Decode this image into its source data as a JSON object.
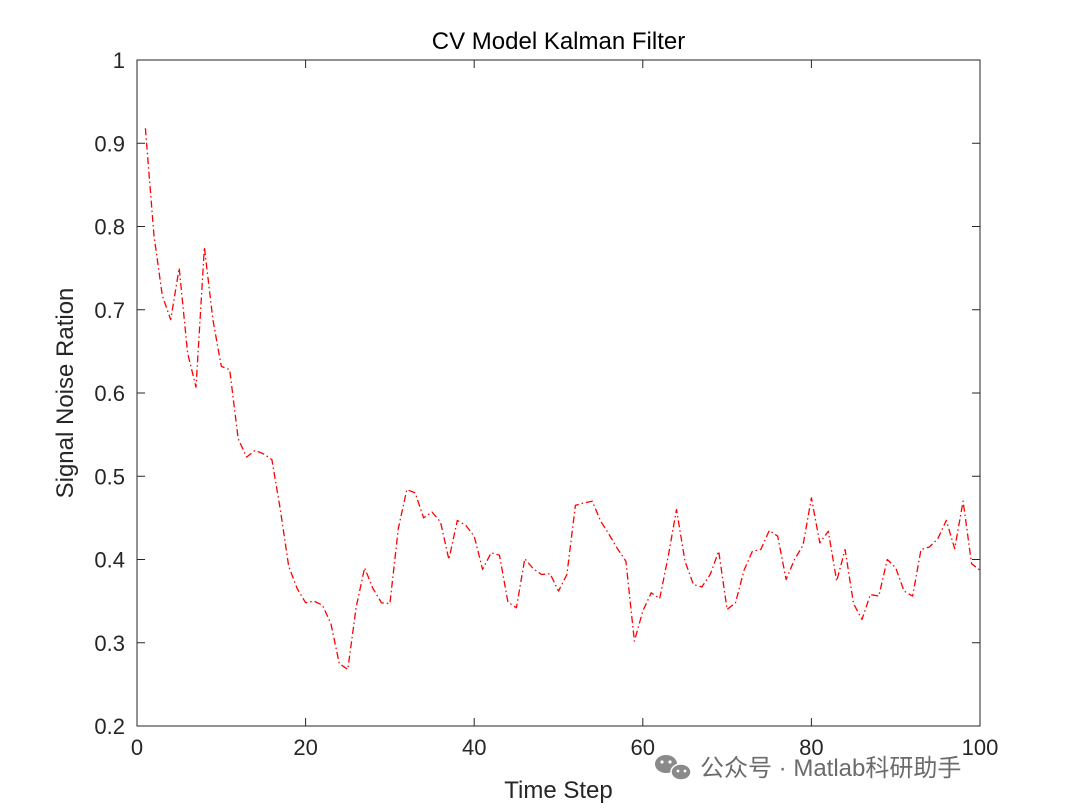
{
  "chart_data": {
    "type": "line",
    "title": "CV Model Kalman Filter",
    "xlabel": "Time Step",
    "ylabel": "Signal Noise Ration",
    "xlim": [
      0,
      100
    ],
    "ylim": [
      0.2,
      1
    ],
    "xticks": [
      "0",
      "20",
      "40",
      "60",
      "80",
      "100"
    ],
    "yticks": [
      "0.2",
      "0.3",
      "0.4",
      "0.5",
      "0.6",
      "0.7",
      "0.8",
      "0.9",
      "1"
    ],
    "grid": false,
    "line_style": "dash-dot",
    "series": [
      {
        "color": "#ff0000",
        "x": [
          1,
          2,
          3,
          4,
          5,
          6,
          7,
          8,
          9,
          10,
          11,
          12,
          13,
          14,
          15,
          16,
          17,
          18,
          19,
          20,
          21,
          22,
          23,
          24,
          25,
          26,
          27,
          28,
          29,
          30,
          31,
          32,
          33,
          34,
          35,
          36,
          37,
          38,
          39,
          40,
          41,
          42,
          43,
          44,
          45,
          46,
          47,
          48,
          49,
          50,
          51,
          52,
          53,
          54,
          55,
          56,
          57,
          58,
          59,
          60,
          61,
          62,
          63,
          64,
          65,
          66,
          67,
          68,
          69,
          70,
          71,
          72,
          73,
          74,
          75,
          76,
          77,
          78,
          79,
          80,
          81,
          82,
          83,
          84,
          85,
          86,
          87,
          88,
          89,
          90,
          91,
          92,
          93,
          94,
          95,
          96,
          97,
          98,
          99,
          100
        ],
        "values": [
          0.918,
          0.79,
          0.717,
          0.688,
          0.75,
          0.648,
          0.607,
          0.775,
          0.688,
          0.632,
          0.628,
          0.545,
          0.523,
          0.531,
          0.527,
          0.52,
          0.46,
          0.392,
          0.365,
          0.348,
          0.35,
          0.345,
          0.323,
          0.275,
          0.268,
          0.343,
          0.39,
          0.365,
          0.348,
          0.347,
          0.437,
          0.484,
          0.48,
          0.45,
          0.457,
          0.445,
          0.4,
          0.447,
          0.441,
          0.428,
          0.388,
          0.408,
          0.405,
          0.349,
          0.342,
          0.401,
          0.389,
          0.382,
          0.383,
          0.362,
          0.382,
          0.465,
          0.468,
          0.47,
          0.446,
          0.43,
          0.413,
          0.398,
          0.302,
          0.338,
          0.36,
          0.353,
          0.403,
          0.46,
          0.398,
          0.37,
          0.367,
          0.382,
          0.41,
          0.34,
          0.348,
          0.387,
          0.41,
          0.412,
          0.435,
          0.428,
          0.376,
          0.4,
          0.417,
          0.474,
          0.42,
          0.434,
          0.374,
          0.412,
          0.347,
          0.328,
          0.358,
          0.356,
          0.4,
          0.39,
          0.362,
          0.356,
          0.412,
          0.415,
          0.425,
          0.447,
          0.413,
          0.47,
          0.395,
          0.387
        ]
      }
    ]
  },
  "watermark": {
    "text": "公众号 · Matlab科研助手",
    "icon": "wechat-icon"
  }
}
